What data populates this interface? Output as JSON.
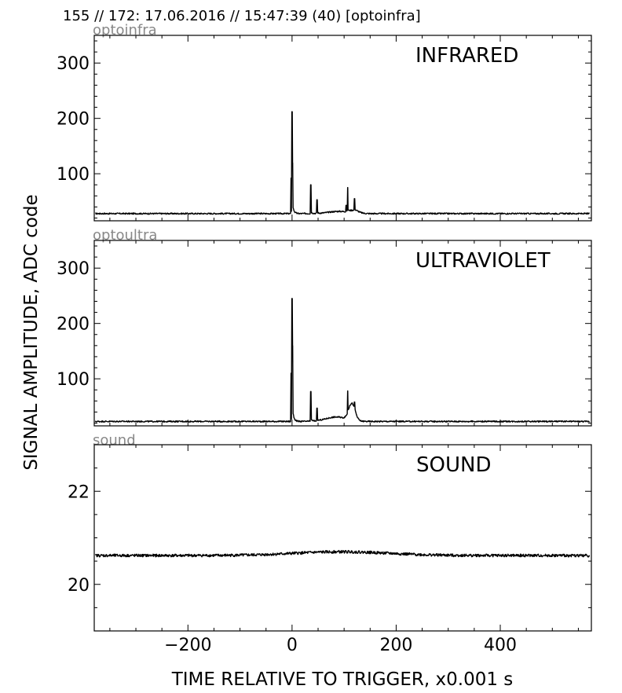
{
  "header": "155 // 172:   17.06.2016 // 15:47:39 (40)  [optoinfra]",
  "ylabel": "SIGNAL AMPLITUDE,  ADC code",
  "xlabel": "TIME RELATIVE TO TRIGGER,   x0.001 s",
  "chart_data": [
    {
      "type": "line",
      "sublabel": "optoinfra",
      "title": "INFRARED",
      "xlim": [
        -380,
        575
      ],
      "ylim": [
        15,
        350
      ],
      "yticks": [
        100,
        200,
        300
      ],
      "ytick_labels": [
        "100",
        "200",
        "300"
      ],
      "baseline": 28,
      "spikes": [
        [
          -2,
          92
        ],
        [
          0,
          212
        ],
        [
          1,
          120
        ],
        [
          36,
          80
        ],
        [
          48,
          53
        ],
        [
          104,
          43
        ],
        [
          107,
          75
        ],
        [
          120,
          55
        ]
      ],
      "bumps": [
        [
          90,
          20,
          4
        ],
        [
          120,
          8,
          5
        ]
      ]
    },
    {
      "type": "line",
      "sublabel": "optoultra",
      "title": "ULTRAVIOLET",
      "xlim": [
        -380,
        575
      ],
      "ylim": [
        15,
        350
      ],
      "yticks": [
        100,
        200,
        300
      ],
      "ytick_labels": [
        "100",
        "200",
        "300"
      ],
      "baseline": 23,
      "spikes": [
        [
          -2,
          110
        ],
        [
          0,
          245
        ],
        [
          1,
          160
        ],
        [
          36,
          77
        ],
        [
          48,
          47
        ],
        [
          107,
          78
        ],
        [
          120,
          58
        ]
      ],
      "bumps": [
        [
          85,
          20,
          8
        ],
        [
          115,
          6,
          30
        ]
      ]
    },
    {
      "type": "line",
      "sublabel": "sound",
      "title": "SOUND",
      "xlim": [
        -380,
        575
      ],
      "ylim": [
        19,
        23
      ],
      "yticks": [
        20,
        22
      ],
      "ytick_labels": [
        "20",
        "22"
      ],
      "baseline": 20.62,
      "spikes": [],
      "bumps": [
        [
          95,
          90,
          0.08
        ]
      ]
    }
  ],
  "xticks": [
    -200,
    0,
    200,
    400
  ],
  "xtick_labels": [
    "−200",
    "0",
    "200",
    "400"
  ]
}
